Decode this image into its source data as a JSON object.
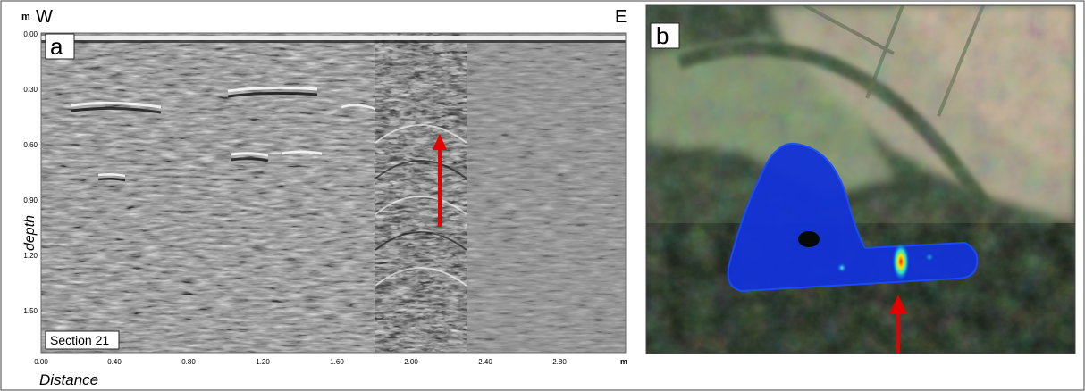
{
  "panel_a": {
    "label": "a",
    "depth_unit": "m",
    "distance_unit": "m",
    "west_label": "W",
    "east_label": "E",
    "section_label": "Section 21",
    "y_axis_label": "depth",
    "x_axis_label": "Distance",
    "depth_ticks": [
      "0.00",
      "0.30",
      "0.60",
      "0.90",
      "1.20",
      "1.50"
    ],
    "distance_ticks": [
      "0.00",
      "0.40",
      "0.80",
      "1.20",
      "1.60",
      "2.00",
      "2.40",
      "2.80"
    ],
    "arrow_color": "#e60000"
  },
  "panel_b": {
    "label": "b",
    "arrow_color": "#e60000"
  }
}
